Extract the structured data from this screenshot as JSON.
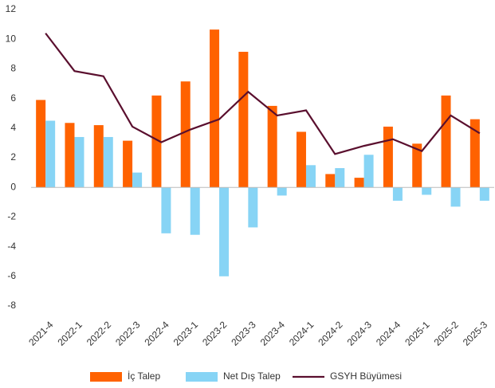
{
  "chart_data": {
    "type": "bar",
    "categories": [
      "2021-4",
      "2022-1",
      "2022-2",
      "2022-3",
      "2022-4",
      "2023-1",
      "2023-2",
      "2023-3",
      "2023-4",
      "2024-1",
      "2024-2",
      "2024-3",
      "2024-4",
      "2025-1",
      "2025-2",
      "2025-3"
    ],
    "series": [
      {
        "name": "İç Talep",
        "type": "bar",
        "color": "#ff6200",
        "values": [
          5.9,
          4.35,
          4.2,
          3.15,
          6.2,
          7.15,
          10.65,
          9.15,
          5.5,
          3.75,
          0.9,
          0.65,
          4.1,
          2.95,
          6.2,
          4.6
        ]
      },
      {
        "name": "Net Dış Talep",
        "type": "bar",
        "color": "#87d4f5",
        "values": [
          4.5,
          3.4,
          3.4,
          1.0,
          -3.1,
          -3.2,
          -6.0,
          -2.7,
          -0.55,
          1.5,
          1.3,
          2.2,
          -0.9,
          -0.5,
          -1.3,
          -0.9
        ]
      },
      {
        "name": "GSYH Büyümesi",
        "type": "line",
        "color": "#5a0f2e",
        "values": [
          10.4,
          7.85,
          7.5,
          4.1,
          3.05,
          3.9,
          4.6,
          6.45,
          4.85,
          5.2,
          2.25,
          2.8,
          3.25,
          2.45,
          4.85,
          3.65
        ]
      }
    ],
    "ylim": [
      -8,
      12
    ],
    "yticks": [
      -8,
      -6,
      -4,
      -2,
      0,
      2,
      4,
      6,
      8,
      10,
      12
    ],
    "grid": false,
    "legend": "bottom"
  }
}
